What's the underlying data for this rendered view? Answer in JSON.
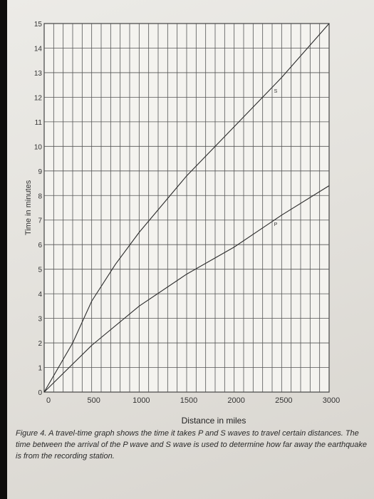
{
  "chart_data": {
    "type": "line",
    "xlabel": "Distance in miles",
    "ylabel": "Time in minutes",
    "xlim": [
      0,
      3000
    ],
    "ylim": [
      0,
      15
    ],
    "x_ticks": [
      "0",
      "500",
      "1000",
      "1500",
      "2000",
      "2500",
      "3000"
    ],
    "y_ticks": [
      "0",
      "1",
      "2",
      "3",
      "4",
      "5",
      "6",
      "7",
      "8",
      "9",
      "10",
      "11",
      "12",
      "13",
      "14",
      "15"
    ],
    "grid": true,
    "series": [
      {
        "name": "S",
        "color": "#2b2b2b",
        "points": [
          [
            0,
            0
          ],
          [
            300,
            2.0
          ],
          [
            500,
            3.7
          ],
          [
            750,
            5.2
          ],
          [
            1000,
            6.5
          ],
          [
            1500,
            8.8
          ],
          [
            2000,
            10.8
          ],
          [
            2500,
            12.8
          ],
          [
            3000,
            15.0
          ]
        ]
      },
      {
        "name": "P",
        "color": "#2b2b2b",
        "points": [
          [
            0,
            0
          ],
          [
            500,
            1.9
          ],
          [
            1000,
            3.5
          ],
          [
            1500,
            4.8
          ],
          [
            2000,
            5.9
          ],
          [
            2500,
            7.2
          ],
          [
            3000,
            8.4
          ]
        ]
      }
    ]
  },
  "caption": {
    "label": "Figure 4.",
    "text": "A travel-time graph shows the time it takes P and S waves to travel certain distances. The time between the arrival of the P wave and S wave is used to determine how far away the earthquake is from the recording station."
  }
}
